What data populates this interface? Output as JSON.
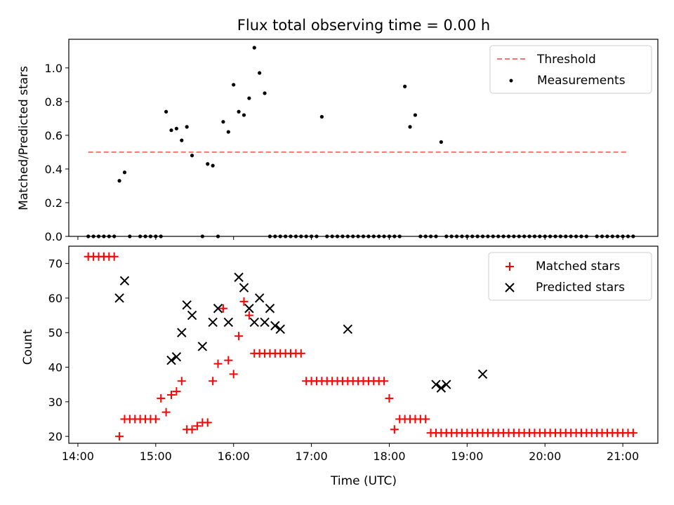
{
  "chart_data": [
    {
      "type": "scatter",
      "title": "Flux total observing time = 0.00 h",
      "xlabel": "",
      "ylabel": "Matched/Predicted stars",
      "xlim": [
        "13:53",
        "21:27"
      ],
      "ylim": [
        0,
        1.17
      ],
      "yticks": [
        "0.0",
        "0.2",
        "0.4",
        "0.6",
        "0.8",
        "1.0"
      ],
      "xticks": [
        "14:00",
        "15:00",
        "16:00",
        "17:00",
        "18:00",
        "19:00",
        "20:00",
        "21:00"
      ],
      "show_xtick_labels": false,
      "grid": false,
      "legend_position": "upper right",
      "threshold": {
        "name": "Threshold",
        "y": 0.5,
        "x": [
          "14:08",
          "21:04"
        ],
        "color": "#ff7070",
        "style": "dashed"
      },
      "series": [
        {
          "name": "Measurements",
          "marker": "dot",
          "color": "#000000",
          "x": [
            "14:08",
            "14:12",
            "14:16",
            "14:20",
            "14:24",
            "14:28",
            "14:32",
            "14:36",
            "14:40",
            "14:48",
            "14:52",
            "14:56",
            "15:00",
            "15:04",
            "15:08",
            "15:12",
            "15:16",
            "15:20",
            "15:24",
            "15:28",
            "15:36",
            "15:40",
            "15:44",
            "15:48",
            "15:52",
            "15:56",
            "16:00",
            "16:04",
            "16:08",
            "16:12",
            "16:16",
            "16:20",
            "16:24",
            "16:28",
            "16:32",
            "16:36",
            "16:40",
            "16:44",
            "16:48",
            "16:52",
            "16:56",
            "17:00",
            "17:04",
            "17:08",
            "17:12",
            "17:16",
            "17:20",
            "17:24",
            "17:28",
            "17:32",
            "17:36",
            "17:40",
            "17:44",
            "17:48",
            "17:52",
            "17:56",
            "18:00",
            "18:04",
            "18:08",
            "18:12",
            "18:16",
            "18:20",
            "18:24",
            "18:28",
            "18:32",
            "18:36",
            "18:40",
            "18:44",
            "18:48",
            "18:52",
            "18:56",
            "19:00",
            "19:04",
            "19:08",
            "19:12",
            "19:16",
            "19:20",
            "19:24",
            "19:28",
            "19:32",
            "19:36",
            "19:40",
            "19:44",
            "19:48",
            "19:52",
            "19:56",
            "20:00",
            "20:04",
            "20:08",
            "20:12",
            "20:16",
            "20:20",
            "20:24",
            "20:28",
            "20:32",
            "20:40",
            "20:44",
            "20:48",
            "20:52",
            "20:56",
            "21:00",
            "21:04",
            "21:08"
          ],
          "y": [
            0,
            0,
            0,
            0,
            0,
            0,
            0.33,
            0.38,
            0,
            0,
            0,
            0,
            0,
            0,
            0.74,
            0.63,
            0.64,
            0.57,
            0.65,
            0.48,
            0,
            0.43,
            0.42,
            0,
            0.68,
            0.62,
            0.9,
            0.74,
            0.72,
            0.82,
            1.12,
            0.97,
            0.85,
            0,
            0,
            0,
            0,
            0,
            0,
            0,
            0,
            0,
            0,
            0.71,
            0,
            0,
            0,
            0,
            0,
            0,
            0,
            0,
            0,
            0,
            0,
            0,
            0,
            0,
            0,
            0.89,
            0.65,
            0.72,
            0,
            0,
            0,
            0,
            0.56,
            0,
            0,
            0,
            0,
            0,
            0,
            0,
            0,
            0,
            0,
            0,
            0,
            0,
            0,
            0,
            0,
            0,
            0,
            0,
            0,
            0,
            0,
            0,
            0,
            0,
            0,
            0,
            0,
            0,
            0,
            0,
            0,
            0,
            0,
            0,
            0
          ]
        }
      ]
    },
    {
      "type": "scatter",
      "title": "",
      "xlabel": "Time (UTC)",
      "ylabel": "Count",
      "xlim": [
        "13:53",
        "21:27"
      ],
      "ylim": [
        18,
        75
      ],
      "yticks": [
        "20",
        "30",
        "40",
        "50",
        "60",
        "70"
      ],
      "xticks": [
        "14:00",
        "15:00",
        "16:00",
        "17:00",
        "18:00",
        "19:00",
        "20:00",
        "21:00"
      ],
      "show_xtick_labels": true,
      "grid": false,
      "legend_position": "upper right",
      "series": [
        {
          "name": "Matched stars",
          "marker": "plus",
          "color": "#ff0000",
          "x": [
            "14:08",
            "14:12",
            "14:16",
            "14:20",
            "14:24",
            "14:28",
            "14:32",
            "14:36",
            "14:40",
            "14:44",
            "14:48",
            "14:52",
            "14:56",
            "15:00",
            "15:04",
            "15:08",
            "15:12",
            "15:16",
            "15:20",
            "15:24",
            "15:28",
            "15:32",
            "15:36",
            "15:40",
            "15:44",
            "15:48",
            "15:52",
            "15:56",
            "16:00",
            "16:04",
            "16:08",
            "16:12",
            "16:16",
            "16:20",
            "16:24",
            "16:28",
            "16:32",
            "16:36",
            "16:40",
            "16:44",
            "16:48",
            "16:52",
            "16:56",
            "17:00",
            "17:04",
            "17:08",
            "17:12",
            "17:16",
            "17:20",
            "17:24",
            "17:28",
            "17:32",
            "17:36",
            "17:40",
            "17:44",
            "17:48",
            "17:52",
            "17:56",
            "18:00",
            "18:04",
            "18:08",
            "18:12",
            "18:16",
            "18:20",
            "18:24",
            "18:28",
            "18:32",
            "18:36",
            "18:40",
            "18:44",
            "18:48",
            "18:52",
            "18:56",
            "19:00",
            "19:04",
            "19:08",
            "19:12",
            "19:16",
            "19:20",
            "19:24",
            "19:28",
            "19:32",
            "19:36",
            "19:40",
            "19:44",
            "19:48",
            "19:52",
            "19:56",
            "20:00",
            "20:04",
            "20:08",
            "20:12",
            "20:16",
            "20:20",
            "20:24",
            "20:28",
            "20:32",
            "20:36",
            "20:40",
            "20:44",
            "20:48",
            "20:52",
            "20:56",
            "21:00",
            "21:04",
            "21:08"
          ],
          "y": [
            72,
            72,
            72,
            72,
            72,
            72,
            20,
            25,
            25,
            25,
            25,
            25,
            25,
            25,
            31,
            27,
            32,
            33,
            36,
            22,
            22,
            23,
            24,
            24,
            36,
            41,
            57,
            42,
            38,
            49,
            59,
            55,
            44,
            44,
            44,
            44,
            44,
            44,
            44,
            44,
            44,
            44,
            36,
            36,
            36,
            36,
            36,
            36,
            36,
            36,
            36,
            36,
            36,
            36,
            36,
            36,
            36,
            36,
            31,
            22,
            25,
            25,
            25,
            25,
            25,
            25,
            21,
            21,
            21,
            21,
            21,
            21,
            21,
            21,
            21,
            21,
            21,
            21,
            21,
            21,
            21,
            21,
            21,
            21,
            21,
            21,
            21,
            21,
            21,
            21,
            21,
            21,
            21,
            21,
            21,
            21,
            21,
            21,
            21,
            21,
            21,
            21,
            21,
            21,
            21,
            21
          ]
        },
        {
          "name": "Predicted stars",
          "marker": "x",
          "color": "#000000",
          "x": [
            "14:32",
            "14:36",
            "15:12",
            "15:16",
            "15:20",
            "15:24",
            "15:28",
            "15:36",
            "15:44",
            "15:48",
            "15:56",
            "16:04",
            "16:08",
            "16:12",
            "16:16",
            "16:20",
            "16:24",
            "16:28",
            "16:32",
            "16:36",
            "17:28",
            "18:36",
            "18:40",
            "18:44",
            "19:12"
          ],
          "y": [
            60,
            65,
            42,
            43,
            50,
            58,
            55,
            46,
            53,
            57,
            53,
            66,
            63,
            57,
            53,
            60,
            53,
            57,
            52,
            51,
            51,
            35,
            34,
            35,
            38
          ]
        }
      ]
    }
  ]
}
